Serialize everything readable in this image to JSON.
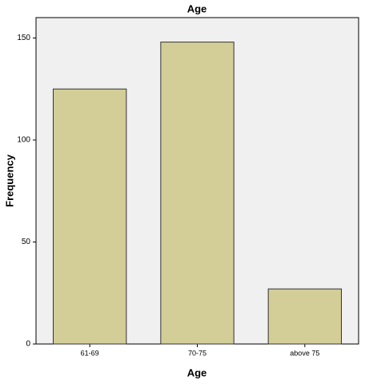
{
  "chart_data": {
    "type": "bar",
    "title": "Age",
    "x_label": "Age",
    "y_label": "Frequency",
    "categories": [
      "61-69",
      "70-75",
      "above 75"
    ],
    "values": [
      125,
      148,
      27
    ],
    "color": "#d3ce97",
    "ylim": [
      0,
      160
    ],
    "yticks": [
      0,
      50,
      100,
      150
    ],
    "grid": false
  }
}
